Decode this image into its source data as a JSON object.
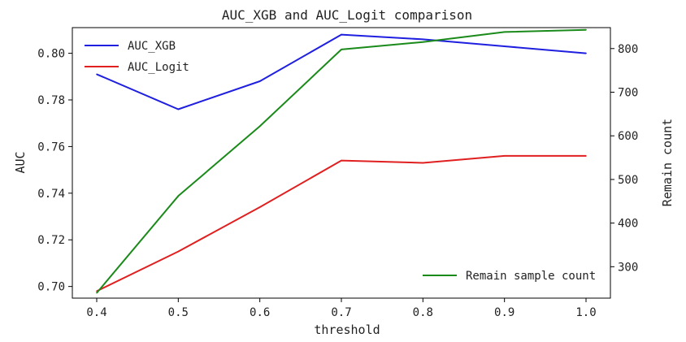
{
  "chart_data": {
    "type": "line",
    "title": "AUC_XGB and AUC_Logit comparison",
    "xlabel": "threshold",
    "ylabel_left": "AUC",
    "ylabel_right": "Remain count",
    "x": [
      0.4,
      0.5,
      0.6,
      0.7,
      0.8,
      0.9,
      1.0
    ],
    "x_tick_labels": [
      "0.4",
      "0.5",
      "0.6",
      "0.7",
      "0.8",
      "0.9",
      "1.0"
    ],
    "ylim_left": [
      0.695,
      0.811
    ],
    "ylim_right": [
      228,
      848
    ],
    "y_left_ticks": [
      "0.70",
      "0.72",
      "0.74",
      "0.76",
      "0.78",
      "0.80"
    ],
    "y_right_ticks": [
      "300",
      "400",
      "500",
      "600",
      "700",
      "800"
    ],
    "grid": false,
    "series": [
      {
        "name": "AUC_XGB",
        "axis": "left",
        "color": "#1f1fe0",
        "values": [
          0.791,
          0.776,
          0.788,
          0.808,
          0.806,
          0.803,
          0.8
        ]
      },
      {
        "name": "AUC_Logit",
        "axis": "left",
        "color": "#e02020",
        "values": [
          0.698,
          0.715,
          0.734,
          0.754,
          0.753,
          0.756,
          0.756
        ]
      },
      {
        "name": "Remain sample count",
        "axis": "right",
        "color": "#1a8a1a",
        "values": [
          240,
          462,
          622,
          798,
          815,
          838,
          843
        ]
      }
    ],
    "legend_left_placement": "top-left",
    "legend_right_placement": "bottom-right"
  }
}
